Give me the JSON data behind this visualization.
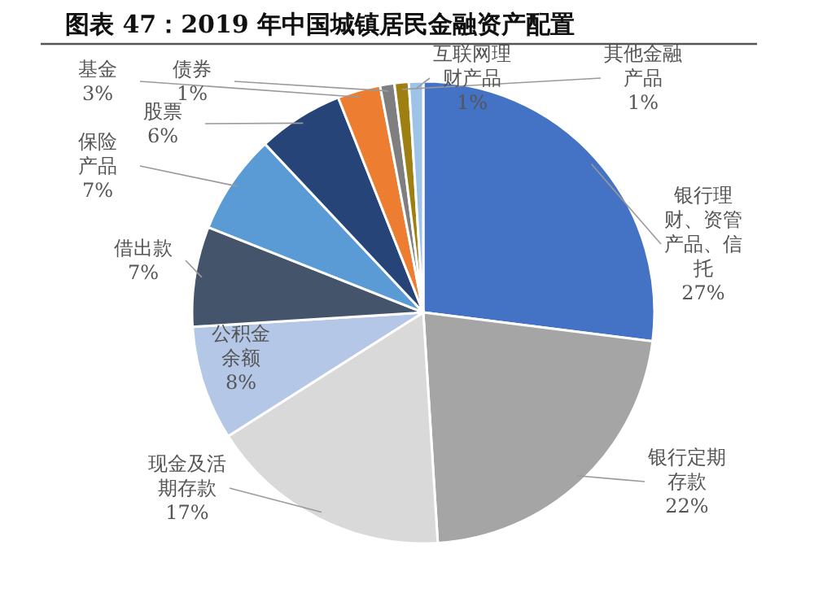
{
  "chart_data": {
    "type": "pie",
    "title": "图表 47：2019 年中国城镇居民金融资产配置",
    "categories": [
      "银行理财、资管产品、信托",
      "银行定期存款",
      "现金及活期存款",
      "公积金余额",
      "借出款",
      "保险产品",
      "股票",
      "基金",
      "债券",
      "其他金融产品",
      "互联网理财产品"
    ],
    "values": [
      27,
      22,
      17,
      8,
      7,
      7,
      6,
      3,
      1,
      1,
      1
    ],
    "value_labels": [
      "27%",
      "22%",
      "17%",
      "8%",
      "7%",
      "7%",
      "6%",
      "3%",
      "1%",
      "1%",
      "1%"
    ],
    "colors": [
      "#4472c4",
      "#a5a5a5",
      "#d9d9d9",
      "#b4c7e7",
      "#44546a",
      "#5b9bd5",
      "#264478",
      "#ed7d31",
      "#7f7f7f",
      "#9e7f12",
      "#9dc3e6"
    ]
  }
}
